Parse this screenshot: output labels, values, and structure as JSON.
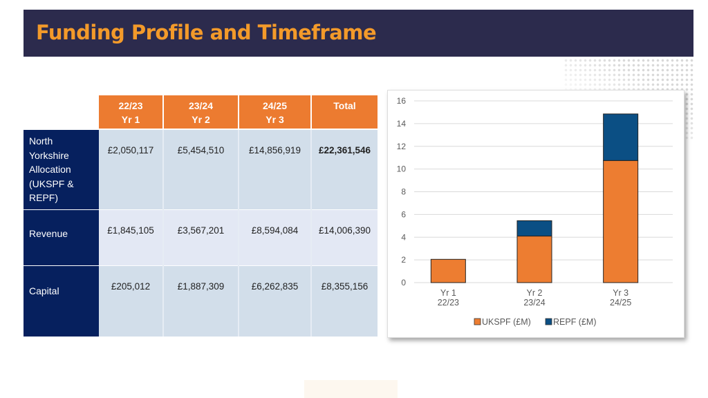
{
  "header": {
    "title": "Funding Profile and Timeframe"
  },
  "table": {
    "columns": [
      {
        "line1": "22/23",
        "line2": "Yr 1"
      },
      {
        "line1": "23/24",
        "line2": "Yr 2"
      },
      {
        "line1": "24/25",
        "line2": "Yr 3"
      },
      {
        "line1": "Total",
        "line2": ""
      }
    ],
    "rows": [
      {
        "label": "North Yorkshire Allocation (UKSPF & REPF)",
        "label_lines": [
          "North",
          "Yorkshire",
          "Allocation",
          "(UKSPF &",
          "REPF)"
        ],
        "values": [
          "£2,050,117",
          "£5,454,510",
          "£14,856,919",
          "£22,361,546"
        ]
      },
      {
        "label": "Revenue",
        "label_lines": [
          "Revenue"
        ],
        "values": [
          "£1,845,105",
          "£3,567,201",
          "£8,594,084",
          "£14,006,390"
        ]
      },
      {
        "label": "Capital",
        "label_lines": [
          "Capital"
        ],
        "values": [
          "£205,012",
          "£1,887,309",
          "£6,262,835",
          "£8,355,156"
        ]
      }
    ]
  },
  "chart_data": {
    "type": "bar",
    "stacked": true,
    "categories": [
      "Yr 1\n22/23",
      "Yr 2\n23/24",
      "Yr 3\n24/25"
    ],
    "category_lines": [
      [
        "Yr 1",
        "22/23"
      ],
      [
        "Yr 2",
        "23/24"
      ],
      [
        "Yr 3",
        "24/25"
      ]
    ],
    "series": [
      {
        "name": "UKSPF (£M)",
        "color": "#ed7d31",
        "values": [
          2.05,
          4.1,
          10.75
        ]
      },
      {
        "name": "REPF (£M)",
        "color": "#0b4f84",
        "values": [
          0,
          1.35,
          4.1
        ]
      }
    ],
    "ylim": [
      0,
      16
    ],
    "yticks": [
      "0",
      "2",
      "4",
      "6",
      "8",
      "10",
      "12",
      "14",
      "16"
    ],
    "grid": true,
    "legend": "bottom",
    "title": "",
    "xlabel": "",
    "ylabel": ""
  }
}
